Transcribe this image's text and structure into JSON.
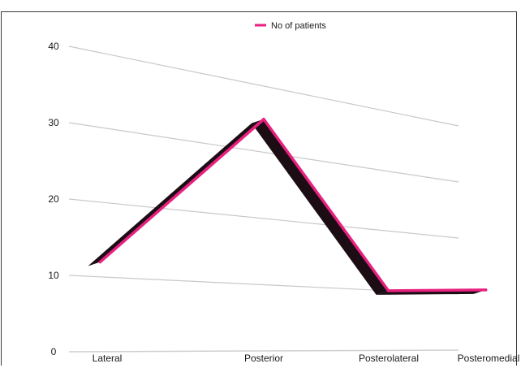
{
  "chart_data": {
    "type": "line",
    "title": "",
    "xlabel": "",
    "ylabel": "",
    "categories": [
      "Lateral",
      "Posterior",
      "Posterolateral",
      "Posteromedial"
    ],
    "series": [
      {
        "name": "No of patients",
        "values": [
          12,
          35,
          10,
          11
        ],
        "color": "#e8207f",
        "shadow_color": "#1c0d14"
      }
    ],
    "y_ticks": [
      0,
      10,
      20,
      30,
      40
    ],
    "ylim": [
      0,
      40
    ],
    "grid": true,
    "legend": "top-center",
    "style": "3d-perspective"
  }
}
